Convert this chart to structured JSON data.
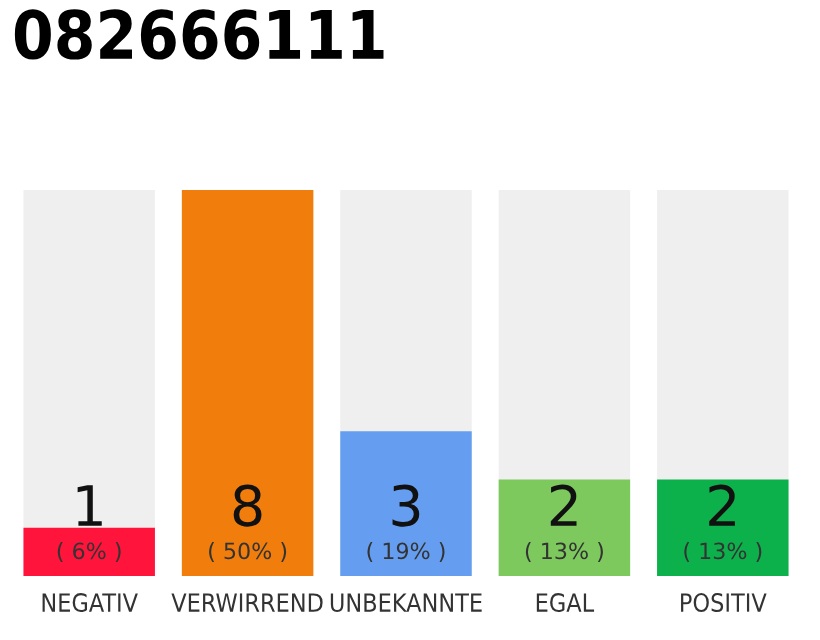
{
  "chart_data": {
    "type": "bar",
    "title": "082666111",
    "categories": [
      "NEGATIV",
      "VERWIRREND",
      "UNBEKANNTE",
      "EGAL",
      "POSITIV"
    ],
    "values": [
      1,
      8,
      3,
      2,
      2
    ],
    "colors": [
      "#ff153c",
      "#f07d0c",
      "#659ef0",
      "#7dc95e",
      "#0db14b"
    ],
    "data_labels": true,
    "annotations": [
      "( 6% )",
      "( 50% )",
      "( 19% )",
      "( 13% )",
      "( 13% )"
    ],
    "grid": false,
    "legend": false
  }
}
